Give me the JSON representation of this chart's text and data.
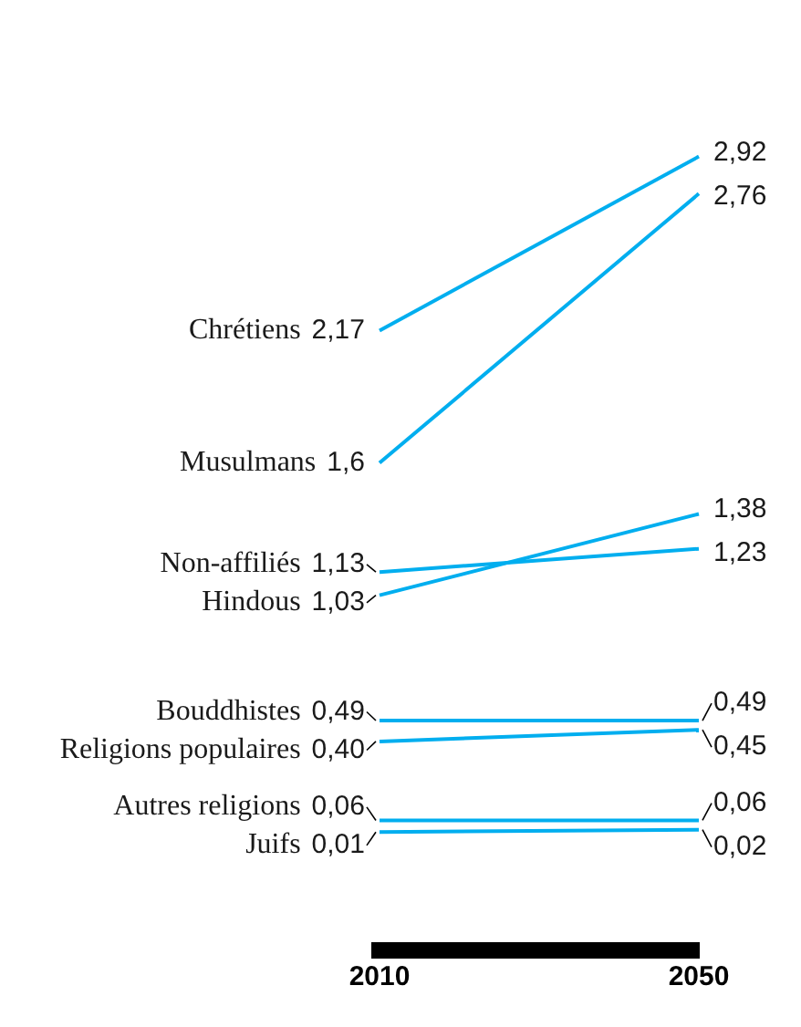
{
  "chart_data": {
    "type": "line",
    "categories": [
      "2010",
      "2050"
    ],
    "legend": false,
    "grid": false,
    "series": [
      {
        "name": "Chrétiens",
        "color": "#00aeef",
        "values": [
          2.17,
          2.92
        ],
        "value_labels": [
          "2,17",
          "2,92"
        ]
      },
      {
        "name": "Musulmans",
        "color": "#00aeef",
        "values": [
          1.6,
          2.76
        ],
        "value_labels": [
          "1,6",
          "2,76"
        ]
      },
      {
        "name": "Non-affiliés",
        "color": "#00aeef",
        "values": [
          1.13,
          1.23
        ],
        "value_labels": [
          "1,13",
          "1,23"
        ]
      },
      {
        "name": "Hindous",
        "color": "#00aeef",
        "values": [
          1.03,
          1.38
        ],
        "value_labels": [
          "1,03",
          "1,38"
        ]
      },
      {
        "name": "Bouddhistes",
        "color": "#00aeef",
        "values": [
          0.49,
          0.49
        ],
        "value_labels": [
          "0,49",
          "0,49"
        ]
      },
      {
        "name": "Religions populaires",
        "color": "#00aeef",
        "values": [
          0.4,
          0.45
        ],
        "value_labels": [
          "0,40",
          "0,45"
        ]
      },
      {
        "name": "Autres religions",
        "color": "#00aeef",
        "values": [
          0.06,
          0.06
        ],
        "value_labels": [
          "0,06",
          "0,06"
        ]
      },
      {
        "name": "Juifs",
        "color": "#00aeef",
        "values": [
          0.01,
          0.02
        ],
        "value_labels": [
          "0,01",
          "0,02"
        ]
      }
    ]
  }
}
